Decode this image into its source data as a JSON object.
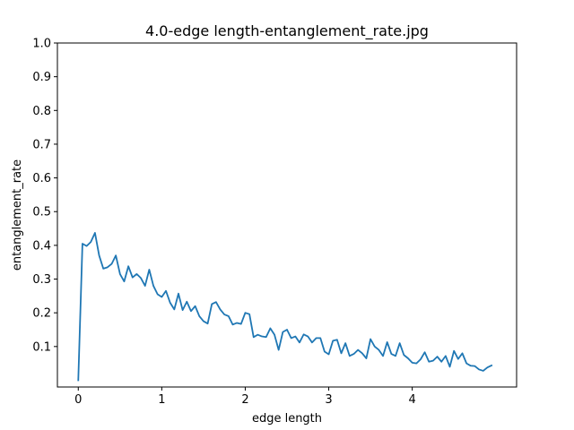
{
  "chart_data": {
    "type": "line",
    "title": "4.0-edge length-entanglement_rate.jpg",
    "xlabel": "edge length",
    "ylabel": "entanglement_rate",
    "xlim": [
      -0.25,
      5.25
    ],
    "ylim": [
      -0.02,
      1.0
    ],
    "xticks": [
      0,
      1,
      2,
      3,
      4
    ],
    "yticks": [
      0.1,
      0.2,
      0.3,
      0.4,
      0.5,
      0.6,
      0.7,
      0.8,
      0.9,
      1.0
    ],
    "grid": false,
    "legend": "none",
    "series": [
      {
        "color": "#1f77b4",
        "x": [
          0,
          0.05,
          0.1,
          0.15,
          0.2,
          0.25,
          0.3,
          0.35,
          0.4,
          0.45,
          0.5,
          0.55,
          0.6,
          0.65,
          0.7,
          0.75,
          0.8,
          0.85,
          0.9,
          0.95,
          1.0,
          1.05,
          1.1,
          1.15,
          1.2,
          1.25,
          1.3,
          1.35,
          1.4,
          1.45,
          1.5,
          1.55,
          1.6,
          1.65,
          1.7,
          1.75,
          1.8,
          1.85,
          1.9,
          1.95,
          2.0,
          2.05,
          2.1,
          2.15,
          2.2,
          2.25,
          2.3,
          2.35,
          2.4,
          2.45,
          2.5,
          2.55,
          2.6,
          2.65,
          2.7,
          2.75,
          2.8,
          2.85,
          2.9,
          2.95,
          3.0,
          3.05,
          3.1,
          3.15,
          3.2,
          3.25,
          3.3,
          3.35,
          3.4,
          3.45,
          3.5,
          3.55,
          3.6,
          3.65,
          3.7,
          3.75,
          3.8,
          3.85,
          3.9,
          3.95,
          4.0,
          4.05,
          4.1,
          4.15,
          4.2,
          4.25,
          4.3,
          4.35,
          4.4,
          4.45,
          4.5,
          4.55,
          4.6,
          4.65,
          4.7,
          4.75,
          4.8,
          4.85,
          4.9,
          4.95
        ],
        "y": [
          0.0,
          0.405,
          0.398,
          0.41,
          0.437,
          0.37,
          0.331,
          0.335,
          0.345,
          0.37,
          0.315,
          0.293,
          0.338,
          0.305,
          0.315,
          0.303,
          0.28,
          0.328,
          0.28,
          0.255,
          0.247,
          0.265,
          0.23,
          0.21,
          0.257,
          0.208,
          0.233,
          0.205,
          0.22,
          0.19,
          0.175,
          0.168,
          0.226,
          0.232,
          0.21,
          0.195,
          0.19,
          0.165,
          0.17,
          0.167,
          0.2,
          0.196,
          0.128,
          0.135,
          0.13,
          0.128,
          0.154,
          0.135,
          0.09,
          0.143,
          0.15,
          0.125,
          0.13,
          0.112,
          0.136,
          0.13,
          0.112,
          0.125,
          0.125,
          0.085,
          0.077,
          0.117,
          0.12,
          0.08,
          0.11,
          0.072,
          0.078,
          0.09,
          0.08,
          0.065,
          0.122,
          0.1,
          0.09,
          0.072,
          0.113,
          0.078,
          0.072,
          0.11,
          0.075,
          0.065,
          0.052,
          0.05,
          0.062,
          0.083,
          0.055,
          0.058,
          0.07,
          0.055,
          0.072,
          0.04,
          0.087,
          0.063,
          0.08,
          0.05,
          0.043,
          0.042,
          0.032,
          0.028,
          0.038,
          0.044
        ]
      }
    ]
  }
}
